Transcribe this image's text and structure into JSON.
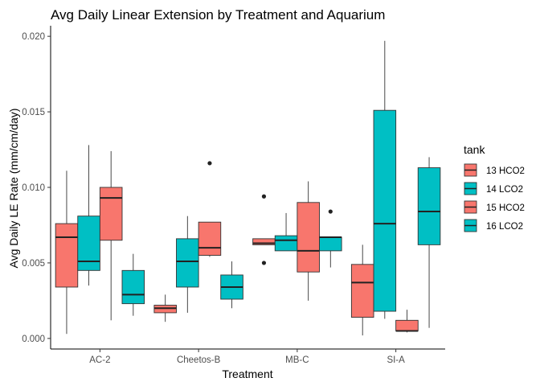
{
  "chart_data": {
    "type": "boxplot",
    "title": "Avg Daily Linear Extension by Treatment and Aquarium",
    "xlabel": "Treatment",
    "ylabel": "Avg Daily LE Rate (mm/cm/day)",
    "ylim": [
      -0.0007,
      0.0207
    ],
    "yticks": [
      "0.000",
      "0.005",
      "0.010",
      "0.015",
      "0.020"
    ],
    "categories": [
      "AC-2",
      "Cheetos-B",
      "MB-C",
      "SI-A"
    ],
    "legend": {
      "title": "tank",
      "position": "right"
    },
    "grid": false,
    "series": [
      {
        "name": "13 HCO2",
        "color": "#F8766D",
        "boxes": [
          {
            "category": "AC-2",
            "min": 0.0003,
            "q1": 0.0034,
            "median": 0.0067,
            "q3": 0.0076,
            "max": 0.0111,
            "outliers": []
          },
          {
            "category": "Cheetos-B",
            "min": 0.0011,
            "q1": 0.0017,
            "median": 0.002,
            "q3": 0.0022,
            "max": 0.0029,
            "outliers": []
          },
          {
            "category": "MB-C",
            "min": 0.0062,
            "q1": 0.0062,
            "median": 0.0063,
            "q3": 0.0066,
            "max": 0.0066,
            "outliers": [
              0.0094,
              0.005
            ]
          },
          {
            "category": "SI-A",
            "min": 0.0002,
            "q1": 0.0014,
            "median": 0.0037,
            "q3": 0.0049,
            "max": 0.0062,
            "outliers": []
          }
        ]
      },
      {
        "name": "14 LCO2",
        "color": "#00BFC4",
        "boxes": [
          {
            "category": "AC-2",
            "min": 0.0035,
            "q1": 0.0045,
            "median": 0.0051,
            "q3": 0.0081,
            "max": 0.0128,
            "outliers": []
          },
          {
            "category": "Cheetos-B",
            "min": 0.0017,
            "q1": 0.0034,
            "median": 0.0051,
            "q3": 0.0066,
            "max": 0.0081,
            "outliers": []
          },
          {
            "category": "MB-C",
            "min": 0.0058,
            "q1": 0.0058,
            "median": 0.0065,
            "q3": 0.0068,
            "max": 0.0083,
            "outliers": []
          },
          {
            "category": "SI-A",
            "min": 0.0013,
            "q1": 0.0018,
            "median": 0.0076,
            "q3": 0.0151,
            "max": 0.0197,
            "outliers": []
          }
        ]
      },
      {
        "name": "15 HCO2",
        "color": "#F8766D",
        "boxes": [
          {
            "category": "AC-2",
            "min": 0.0012,
            "q1": 0.0065,
            "median": 0.0093,
            "q3": 0.01,
            "max": 0.0124,
            "outliers": []
          },
          {
            "category": "Cheetos-B",
            "min": 0.0054,
            "q1": 0.0055,
            "median": 0.006,
            "q3": 0.0077,
            "max": 0.0077,
            "outliers": [
              0.0116
            ]
          },
          {
            "category": "MB-C",
            "min": 0.0025,
            "q1": 0.0044,
            "median": 0.0058,
            "q3": 0.009,
            "max": 0.0104,
            "outliers": []
          },
          {
            "category": "SI-A",
            "min": 0.0004,
            "q1": 0.0005,
            "median": 0.0005,
            "q3": 0.0012,
            "max": 0.0019,
            "outliers": []
          }
        ]
      },
      {
        "name": "16 LCO2",
        "color": "#00BFC4",
        "boxes": [
          {
            "category": "AC-2",
            "min": 0.0015,
            "q1": 0.0023,
            "median": 0.0029,
            "q3": 0.0045,
            "max": 0.0056,
            "outliers": []
          },
          {
            "category": "Cheetos-B",
            "min": 0.002,
            "q1": 0.0026,
            "median": 0.0034,
            "q3": 0.0042,
            "max": 0.0051,
            "outliers": []
          },
          {
            "category": "MB-C",
            "min": 0.0047,
            "q1": 0.0058,
            "median": 0.0067,
            "q3": 0.0067,
            "max": 0.0067,
            "outliers": [
              0.0084
            ]
          },
          {
            "category": "SI-A",
            "min": 0.0007,
            "q1": 0.0062,
            "median": 0.0084,
            "q3": 0.0113,
            "max": 0.012,
            "outliers": []
          }
        ]
      }
    ]
  }
}
